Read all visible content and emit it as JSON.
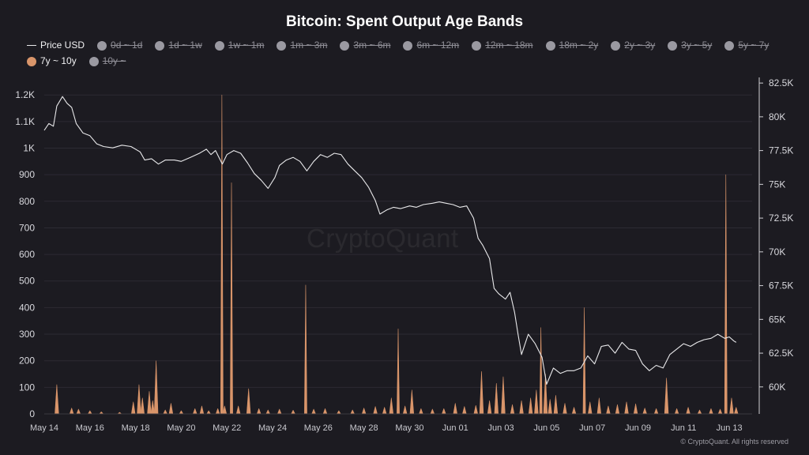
{
  "chart_data": {
    "type": "bar",
    "title": "Bitcoin: Spent Output Age Bands",
    "legend": [
      {
        "label": "Price USD",
        "kind": "line",
        "active": true,
        "color": "#e8e8ea"
      },
      {
        "label": "0d ~ 1d",
        "kind": "dot",
        "active": false,
        "color": "#9a99a1"
      },
      {
        "label": "1d ~ 1w",
        "kind": "dot",
        "active": false,
        "color": "#9a99a1"
      },
      {
        "label": "1w ~ 1m",
        "kind": "dot",
        "active": false,
        "color": "#9a99a1"
      },
      {
        "label": "1m ~ 3m",
        "kind": "dot",
        "active": false,
        "color": "#9a99a1"
      },
      {
        "label": "3m ~ 6m",
        "kind": "dot",
        "active": false,
        "color": "#9a99a1"
      },
      {
        "label": "6m ~ 12m",
        "kind": "dot",
        "active": false,
        "color": "#9a99a1"
      },
      {
        "label": "12m ~ 18m",
        "kind": "dot",
        "active": false,
        "color": "#9a99a1"
      },
      {
        "label": "18m ~ 2y",
        "kind": "dot",
        "active": false,
        "color": "#9a99a1"
      },
      {
        "label": "2y ~ 3y",
        "kind": "dot",
        "active": false,
        "color": "#9a99a1"
      },
      {
        "label": "3y ~ 5y",
        "kind": "dot",
        "active": false,
        "color": "#9a99a1"
      },
      {
        "label": "5y ~ 7y",
        "kind": "dot",
        "active": false,
        "color": "#9a99a1"
      },
      {
        "label": "7y ~ 10y",
        "kind": "dot",
        "active": true,
        "color": "#d9956a"
      },
      {
        "label": "10y ~",
        "kind": "dot",
        "active": false,
        "color": "#9a99a1"
      }
    ],
    "x_range": [
      "2025-05-14",
      "2025-06-14"
    ],
    "x_ticks": [
      "May 14",
      "May 16",
      "May 18",
      "May 20",
      "May 22",
      "May 24",
      "May 26",
      "May 28",
      "May 30",
      "Jun 01",
      "Jun 03",
      "Jun 05",
      "Jun 07",
      "Jun 09",
      "Jun 11",
      "Jun 13"
    ],
    "y_left": {
      "ylim": [
        0,
        1260
      ],
      "ticks": [
        0,
        100,
        200,
        300,
        400,
        500,
        600,
        700,
        800,
        900,
        1000,
        1100,
        1200
      ],
      "tick_labels": [
        "0",
        "100",
        "200",
        "300",
        "400",
        "500",
        "600",
        "700",
        "800",
        "900",
        "1K",
        "1.1K",
        "1.2K"
      ]
    },
    "y_right": {
      "ylim": [
        58000,
        82800
      ],
      "ticks": [
        60000,
        62500,
        65000,
        67500,
        70000,
        72500,
        75000,
        77500,
        80000,
        82500
      ],
      "tick_labels": [
        "60K",
        "62.5K",
        "65K",
        "67.5K",
        "70K",
        "72.5K",
        "75K",
        "77.5K",
        "80K",
        "82.5K"
      ]
    },
    "grid": true,
    "series": [
      {
        "name": "7y ~ 10y",
        "axis": "left",
        "color": "#d9956a",
        "points": [
          {
            "x": 0.55,
            "y": 110
          },
          {
            "x": 1.2,
            "y": 22
          },
          {
            "x": 1.5,
            "y": 18
          },
          {
            "x": 2.0,
            "y": 12
          },
          {
            "x": 2.5,
            "y": 8
          },
          {
            "x": 3.3,
            "y": 6
          },
          {
            "x": 3.9,
            "y": 45
          },
          {
            "x": 4.15,
            "y": 110
          },
          {
            "x": 4.3,
            "y": 60
          },
          {
            "x": 4.6,
            "y": 85
          },
          {
            "x": 4.75,
            "y": 50
          },
          {
            "x": 4.9,
            "y": 200
          },
          {
            "x": 5.3,
            "y": 15
          },
          {
            "x": 5.55,
            "y": 40
          },
          {
            "x": 6.0,
            "y": 12
          },
          {
            "x": 6.6,
            "y": 20
          },
          {
            "x": 6.9,
            "y": 30
          },
          {
            "x": 7.2,
            "y": 12
          },
          {
            "x": 7.6,
            "y": 20
          },
          {
            "x": 7.78,
            "y": 1200
          },
          {
            "x": 7.9,
            "y": 30
          },
          {
            "x": 8.2,
            "y": 870
          },
          {
            "x": 8.5,
            "y": 30
          },
          {
            "x": 8.95,
            "y": 95
          },
          {
            "x": 9.4,
            "y": 20
          },
          {
            "x": 9.8,
            "y": 15
          },
          {
            "x": 10.3,
            "y": 18
          },
          {
            "x": 10.9,
            "y": 14
          },
          {
            "x": 11.45,
            "y": 485
          },
          {
            "x": 11.8,
            "y": 18
          },
          {
            "x": 12.3,
            "y": 20
          },
          {
            "x": 12.9,
            "y": 12
          },
          {
            "x": 13.5,
            "y": 15
          },
          {
            "x": 14.0,
            "y": 22
          },
          {
            "x": 14.5,
            "y": 28
          },
          {
            "x": 14.9,
            "y": 25
          },
          {
            "x": 15.2,
            "y": 60
          },
          {
            "x": 15.5,
            "y": 320
          },
          {
            "x": 15.8,
            "y": 30
          },
          {
            "x": 16.1,
            "y": 90
          },
          {
            "x": 16.5,
            "y": 20
          },
          {
            "x": 17.0,
            "y": 18
          },
          {
            "x": 17.5,
            "y": 20
          },
          {
            "x": 18.0,
            "y": 40
          },
          {
            "x": 18.4,
            "y": 28
          },
          {
            "x": 18.9,
            "y": 32
          },
          {
            "x": 19.15,
            "y": 160
          },
          {
            "x": 19.5,
            "y": 50
          },
          {
            "x": 19.8,
            "y": 115
          },
          {
            "x": 20.1,
            "y": 140
          },
          {
            "x": 20.5,
            "y": 35
          },
          {
            "x": 20.9,
            "y": 50
          },
          {
            "x": 21.3,
            "y": 60
          },
          {
            "x": 21.55,
            "y": 90
          },
          {
            "x": 21.75,
            "y": 325
          },
          {
            "x": 21.95,
            "y": 150
          },
          {
            "x": 22.15,
            "y": 55
          },
          {
            "x": 22.4,
            "y": 70
          },
          {
            "x": 22.8,
            "y": 40
          },
          {
            "x": 23.2,
            "y": 25
          },
          {
            "x": 23.65,
            "y": 400
          },
          {
            "x": 23.9,
            "y": 45
          },
          {
            "x": 24.3,
            "y": 60
          },
          {
            "x": 24.7,
            "y": 30
          },
          {
            "x": 25.1,
            "y": 35
          },
          {
            "x": 25.5,
            "y": 45
          },
          {
            "x": 25.9,
            "y": 38
          },
          {
            "x": 26.3,
            "y": 22
          },
          {
            "x": 26.8,
            "y": 20
          },
          {
            "x": 27.25,
            "y": 135
          },
          {
            "x": 27.7,
            "y": 20
          },
          {
            "x": 28.2,
            "y": 25
          },
          {
            "x": 28.7,
            "y": 15
          },
          {
            "x": 29.2,
            "y": 20
          },
          {
            "x": 29.6,
            "y": 18
          },
          {
            "x": 29.85,
            "y": 900
          },
          {
            "x": 30.1,
            "y": 60
          },
          {
            "x": 30.3,
            "y": 25
          }
        ]
      },
      {
        "name": "Price USD",
        "axis": "right",
        "color": "#e8e8ea",
        "points": [
          {
            "x": 0.0,
            "y": 79000
          },
          {
            "x": 0.2,
            "y": 79500
          },
          {
            "x": 0.4,
            "y": 79300
          },
          {
            "x": 0.55,
            "y": 80800
          },
          {
            "x": 0.8,
            "y": 81500
          },
          {
            "x": 1.0,
            "y": 81000
          },
          {
            "x": 1.2,
            "y": 80700
          },
          {
            "x": 1.4,
            "y": 79500
          },
          {
            "x": 1.7,
            "y": 78800
          },
          {
            "x": 2.0,
            "y": 78600
          },
          {
            "x": 2.3,
            "y": 78000
          },
          {
            "x": 2.6,
            "y": 77800
          },
          {
            "x": 3.0,
            "y": 77700
          },
          {
            "x": 3.4,
            "y": 77900
          },
          {
            "x": 3.8,
            "y": 77800
          },
          {
            "x": 4.2,
            "y": 77400
          },
          {
            "x": 4.4,
            "y": 76800
          },
          {
            "x": 4.7,
            "y": 76900
          },
          {
            "x": 5.0,
            "y": 76500
          },
          {
            "x": 5.3,
            "y": 76800
          },
          {
            "x": 5.7,
            "y": 76800
          },
          {
            "x": 6.0,
            "y": 76700
          },
          {
            "x": 6.4,
            "y": 77000
          },
          {
            "x": 6.8,
            "y": 77300
          },
          {
            "x": 7.1,
            "y": 77600
          },
          {
            "x": 7.3,
            "y": 77200
          },
          {
            "x": 7.5,
            "y": 77500
          },
          {
            "x": 7.8,
            "y": 76500
          },
          {
            "x": 8.0,
            "y": 77200
          },
          {
            "x": 8.3,
            "y": 77500
          },
          {
            "x": 8.6,
            "y": 77300
          },
          {
            "x": 8.9,
            "y": 76600
          },
          {
            "x": 9.2,
            "y": 75800
          },
          {
            "x": 9.5,
            "y": 75300
          },
          {
            "x": 9.8,
            "y": 74700
          },
          {
            "x": 10.1,
            "y": 75500
          },
          {
            "x": 10.3,
            "y": 76400
          },
          {
            "x": 10.6,
            "y": 76800
          },
          {
            "x": 10.9,
            "y": 77000
          },
          {
            "x": 11.2,
            "y": 76700
          },
          {
            "x": 11.5,
            "y": 76000
          },
          {
            "x": 11.8,
            "y": 76700
          },
          {
            "x": 12.1,
            "y": 77200
          },
          {
            "x": 12.4,
            "y": 77000
          },
          {
            "x": 12.7,
            "y": 77300
          },
          {
            "x": 13.0,
            "y": 77200
          },
          {
            "x": 13.3,
            "y": 76500
          },
          {
            "x": 13.6,
            "y": 76000
          },
          {
            "x": 13.9,
            "y": 75500
          },
          {
            "x": 14.2,
            "y": 74800
          },
          {
            "x": 14.5,
            "y": 73800
          },
          {
            "x": 14.7,
            "y": 72800
          },
          {
            "x": 15.0,
            "y": 73100
          },
          {
            "x": 15.3,
            "y": 73300
          },
          {
            "x": 15.6,
            "y": 73200
          },
          {
            "x": 16.0,
            "y": 73400
          },
          {
            "x": 16.3,
            "y": 73300
          },
          {
            "x": 16.6,
            "y": 73500
          },
          {
            "x": 17.0,
            "y": 73600
          },
          {
            "x": 17.3,
            "y": 73700
          },
          {
            "x": 17.6,
            "y": 73600
          },
          {
            "x": 17.9,
            "y": 73500
          },
          {
            "x": 18.2,
            "y": 73300
          },
          {
            "x": 18.5,
            "y": 73400
          },
          {
            "x": 18.8,
            "y": 72500
          },
          {
            "x": 19.0,
            "y": 71000
          },
          {
            "x": 19.2,
            "y": 70500
          },
          {
            "x": 19.5,
            "y": 69500
          },
          {
            "x": 19.7,
            "y": 67300
          },
          {
            "x": 19.9,
            "y": 66900
          },
          {
            "x": 20.2,
            "y": 66500
          },
          {
            "x": 20.4,
            "y": 67000
          },
          {
            "x": 20.6,
            "y": 65500
          },
          {
            "x": 20.75,
            "y": 63900
          },
          {
            "x": 20.9,
            "y": 62400
          },
          {
            "x": 21.2,
            "y": 63900
          },
          {
            "x": 21.5,
            "y": 63200
          },
          {
            "x": 21.8,
            "y": 62200
          },
          {
            "x": 22.0,
            "y": 60200
          },
          {
            "x": 22.3,
            "y": 61400
          },
          {
            "x": 22.6,
            "y": 61000
          },
          {
            "x": 22.9,
            "y": 61200
          },
          {
            "x": 23.2,
            "y": 61200
          },
          {
            "x": 23.5,
            "y": 61400
          },
          {
            "x": 23.8,
            "y": 62300
          },
          {
            "x": 24.1,
            "y": 61700
          },
          {
            "x": 24.4,
            "y": 63000
          },
          {
            "x": 24.7,
            "y": 63100
          },
          {
            "x": 25.0,
            "y": 62500
          },
          {
            "x": 25.3,
            "y": 63300
          },
          {
            "x": 25.6,
            "y": 62800
          },
          {
            "x": 25.9,
            "y": 62700
          },
          {
            "x": 26.2,
            "y": 61700
          },
          {
            "x": 26.5,
            "y": 61200
          },
          {
            "x": 26.8,
            "y": 61600
          },
          {
            "x": 27.1,
            "y": 61400
          },
          {
            "x": 27.4,
            "y": 62400
          },
          {
            "x": 27.7,
            "y": 62800
          },
          {
            "x": 28.0,
            "y": 63200
          },
          {
            "x": 28.3,
            "y": 63000
          },
          {
            "x": 28.6,
            "y": 63300
          },
          {
            "x": 28.9,
            "y": 63500
          },
          {
            "x": 29.2,
            "y": 63600
          },
          {
            "x": 29.5,
            "y": 63900
          },
          {
            "x": 29.8,
            "y": 63600
          },
          {
            "x": 30.0,
            "y": 63700
          },
          {
            "x": 30.2,
            "y": 63400
          },
          {
            "x": 30.3,
            "y": 63300
          }
        ]
      }
    ]
  },
  "watermark": "CryptoQuant",
  "copyright": "© CryptoQuant. All rights reserved"
}
